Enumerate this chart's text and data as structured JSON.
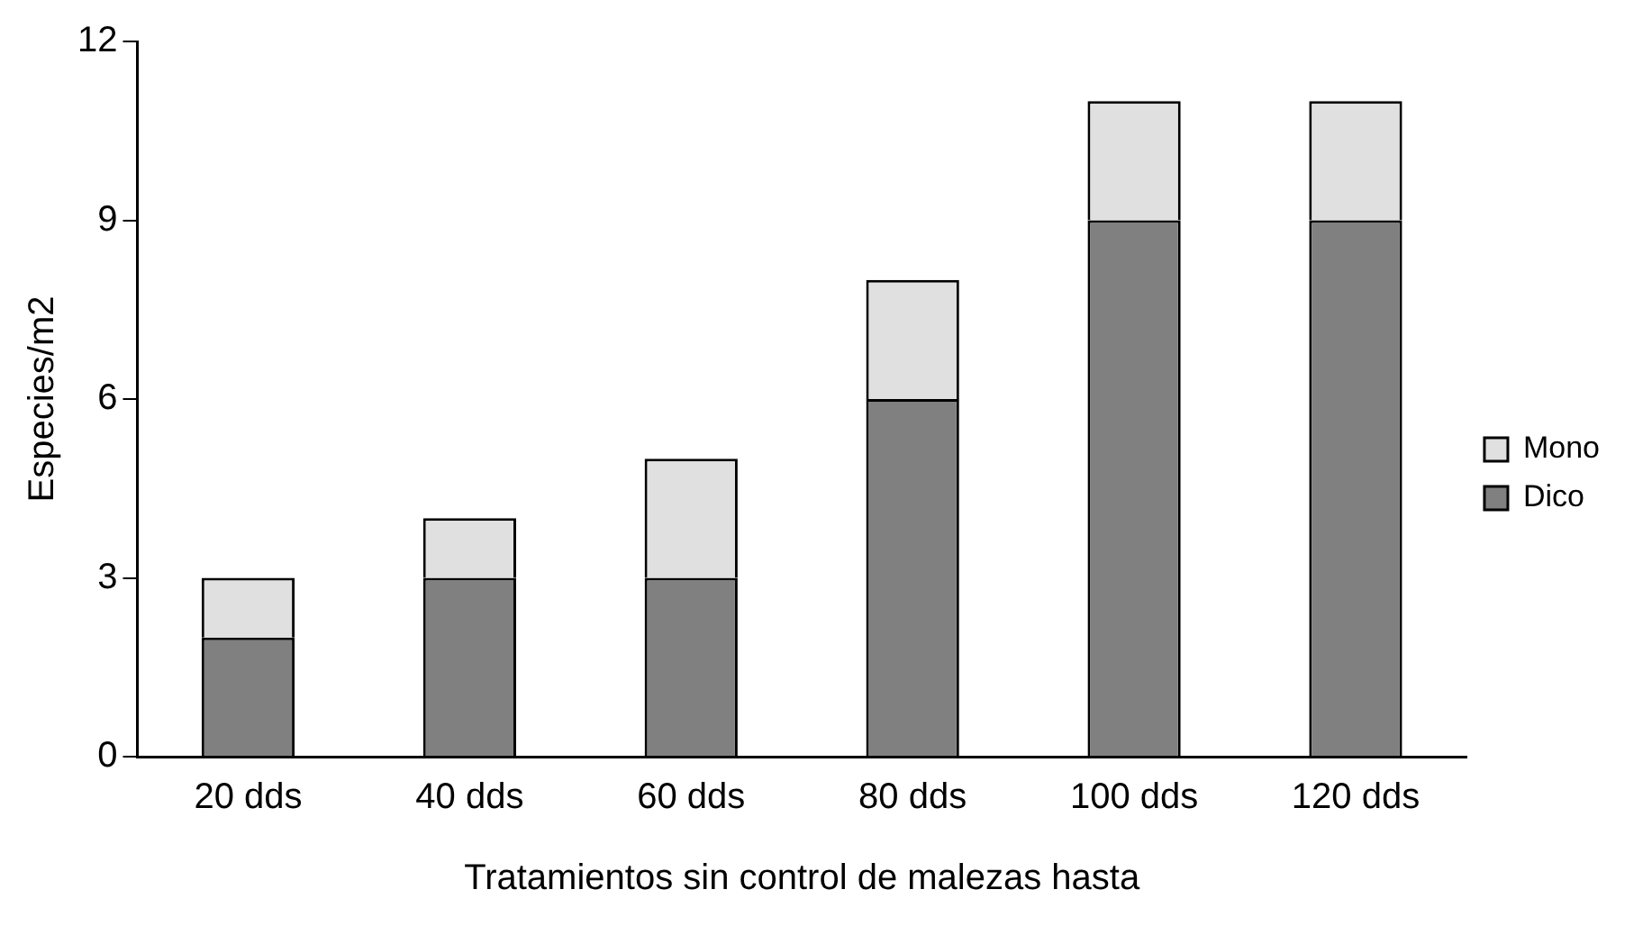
{
  "chart_data": {
    "type": "bar",
    "stacked": true,
    "xlabel": "Tratamientos sin control de malezas hasta",
    "ylabel": "Especies/m2",
    "categories": [
      "20 dds",
      "40 dds",
      "60 dds",
      "80 dds",
      "100 dds",
      "120 dds"
    ],
    "series": [
      {
        "name": "Dico",
        "color": "#808080",
        "values": [
          2,
          3,
          3,
          6,
          9,
          9
        ]
      },
      {
        "name": "Mono",
        "color": "#e0e0e0",
        "values": [
          1,
          1,
          2,
          2,
          2,
          2
        ]
      }
    ],
    "ylim": [
      0,
      12
    ],
    "yticks": [
      0,
      3,
      6,
      9,
      12
    ],
    "grid": false,
    "legend": "right"
  }
}
